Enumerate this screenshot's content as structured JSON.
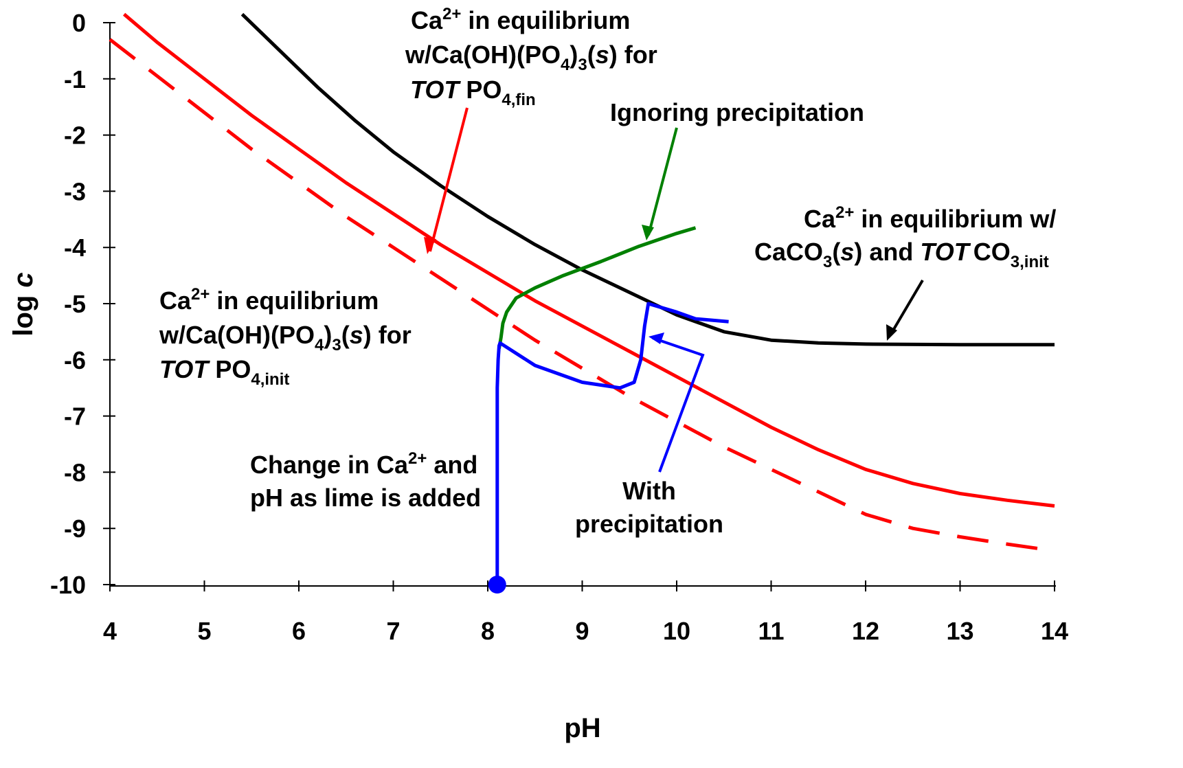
{
  "chart_data": {
    "type": "line",
    "xlabel": "pH",
    "ylabel": "log c",
    "xlim": [
      4,
      14
    ],
    "ylim": [
      -10,
      0
    ],
    "xticks": [
      "4",
      "5",
      "6",
      "7",
      "8",
      "9",
      "10",
      "11",
      "12",
      "13",
      "14"
    ],
    "yticks": [
      "0",
      "-1",
      "-2",
      "-3",
      "-4",
      "-5",
      "-6",
      "-7",
      "-8",
      "-9",
      "-10"
    ],
    "grid": false,
    "series": [
      {
        "key": "caco3",
        "color": "#000000",
        "style": "solid",
        "x": [
          5.4,
          5.8,
          6.2,
          6.6,
          7.0,
          7.5,
          8.0,
          8.5,
          9.0,
          9.5,
          10.0,
          10.5,
          11.0,
          11.5,
          12.0,
          13.0,
          14.0
        ],
        "y": [
          0.15,
          -0.5,
          -1.15,
          -1.75,
          -2.3,
          -2.9,
          -3.45,
          -3.95,
          -4.4,
          -4.8,
          -5.2,
          -5.5,
          -5.65,
          -5.7,
          -5.72,
          -5.73,
          -5.73
        ]
      },
      {
        "key": "po4_fin",
        "color": "#ff0000",
        "style": "solid",
        "x": [
          4.15,
          4.5,
          5.0,
          5.5,
          6.0,
          6.5,
          7.0,
          7.5,
          8.0,
          8.5,
          9.0,
          9.5,
          10.0,
          10.5,
          11.0,
          11.5,
          12.0,
          12.5,
          13.0,
          13.5,
          14.0
        ],
        "y": [
          0.15,
          -0.35,
          -1.0,
          -1.65,
          -2.25,
          -2.85,
          -3.4,
          -3.95,
          -4.45,
          -4.95,
          -5.4,
          -5.85,
          -6.3,
          -6.75,
          -7.2,
          -7.6,
          -7.95,
          -8.2,
          -8.38,
          -8.5,
          -8.6
        ]
      },
      {
        "key": "po4_init",
        "color": "#ff0000",
        "style": "dashed",
        "x": [
          4.0,
          4.5,
          5.0,
          5.5,
          6.0,
          6.5,
          7.0,
          7.5,
          8.0,
          8.5,
          9.0,
          9.5,
          10.0,
          10.5,
          11.0,
          11.5,
          12.0,
          12.5,
          13.0,
          13.5,
          14.0
        ],
        "y": [
          -0.3,
          -0.95,
          -1.6,
          -2.25,
          -2.85,
          -3.45,
          -4.0,
          -4.55,
          -5.1,
          -5.65,
          -6.15,
          -6.65,
          -7.1,
          -7.55,
          -7.95,
          -8.35,
          -8.75,
          -9.0,
          -9.15,
          -9.28,
          -9.4
        ]
      },
      {
        "key": "ignoring",
        "color": "#008000",
        "style": "solid",
        "x": [
          8.12,
          8.14,
          8.16,
          8.2,
          8.3,
          8.5,
          8.8,
          9.2,
          9.6,
          10.0,
          10.2
        ],
        "y": [
          -5.8,
          -5.6,
          -5.35,
          -5.15,
          -4.9,
          -4.72,
          -4.5,
          -4.25,
          -3.98,
          -3.75,
          -3.65
        ]
      },
      {
        "key": "with_precip",
        "color": "#0000ff",
        "style": "solid",
        "x": [
          8.1,
          8.1,
          8.1,
          8.11,
          8.12,
          8.13,
          8.5,
          9.0,
          9.4,
          9.55,
          9.62,
          9.66,
          9.7,
          10.0,
          10.2,
          10.55
        ],
        "y": [
          -10.0,
          -8.0,
          -6.5,
          -6.0,
          -5.75,
          -5.7,
          -6.1,
          -6.4,
          -6.5,
          -6.4,
          -6.0,
          -5.4,
          -5.0,
          -5.15,
          -5.27,
          -5.32
        ]
      }
    ],
    "marker": {
      "x": 8.1,
      "y": -10.0,
      "color": "#0000ff"
    },
    "annotations": {
      "po4_fin": [
        "Ca",
        "2+",
        " in equilibrium",
        "w/Ca(OH)(PO",
        "4",
        ")",
        "3",
        "(",
        "s",
        ") for",
        "TOT",
        "PO",
        "4,fin"
      ],
      "ignoring": "Ignoring precipitation",
      "caco3": [
        "Ca",
        "2+",
        " in equilibrium w/",
        "CaCO",
        "3",
        "(",
        "s",
        ") and ",
        "TOT",
        "CO",
        "3,init"
      ],
      "po4_init": [
        "Ca",
        "2+",
        " in equilibrium",
        "w/Ca(OH)(PO",
        "4",
        ")",
        "3",
        "(",
        "s",
        ") for",
        "TOT",
        "PO",
        "4,init"
      ],
      "lime": [
        "Change in Ca",
        "2+",
        " and",
        "pH as lime is added"
      ],
      "with_precip": [
        "With",
        "precipitation"
      ]
    }
  }
}
